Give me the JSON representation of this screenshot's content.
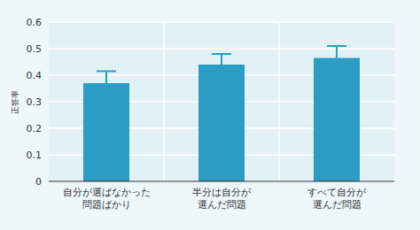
{
  "chart_data": {
    "type": "bar",
    "categories": [
      "自分が選ばなかった\n問題ばかり",
      "半分は自分が\n選んだ問題",
      "すべて自分が\n選んだ問題"
    ],
    "values": [
      0.37,
      0.44,
      0.465
    ],
    "errors": [
      0.045,
      0.04,
      0.045
    ],
    "color": "#2b9cc3",
    "y_label": "正答率",
    "ylim": [
      0,
      0.6
    ],
    "yticks": [
      0,
      0.1,
      0.2,
      0.3,
      0.4,
      0.5,
      0.6
    ],
    "grid": true
  }
}
